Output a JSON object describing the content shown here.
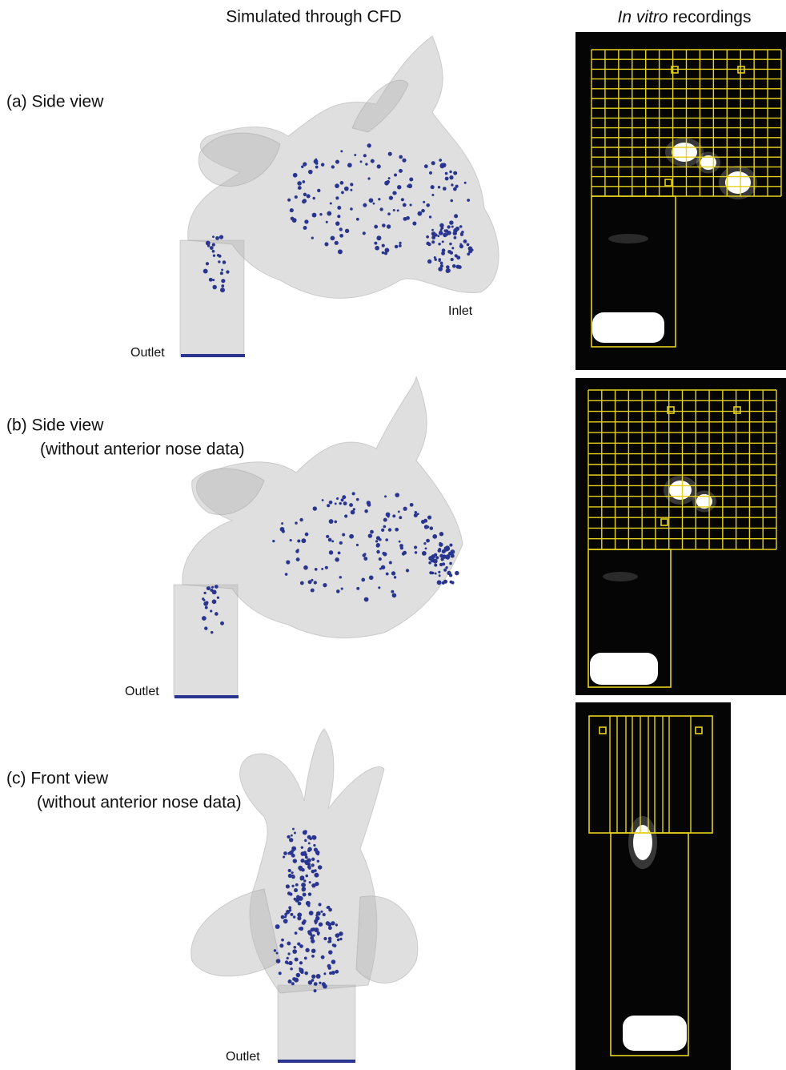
{
  "header": {
    "cfd_title": "Simulated through CFD",
    "invitro_italic": "In vitro",
    "invitro_rest": "recordings"
  },
  "panels": [
    {
      "label": "(a) Side view",
      "outlet": "Outlet",
      "inlet": "Inlet"
    },
    {
      "label": "(b) Side view",
      "sublabel": "(without anterior nose data)",
      "outlet": "Outlet"
    },
    {
      "label": "(c) Front view",
      "sublabel": "(without anterior nose data)",
      "outlet": "Outlet"
    }
  ]
}
